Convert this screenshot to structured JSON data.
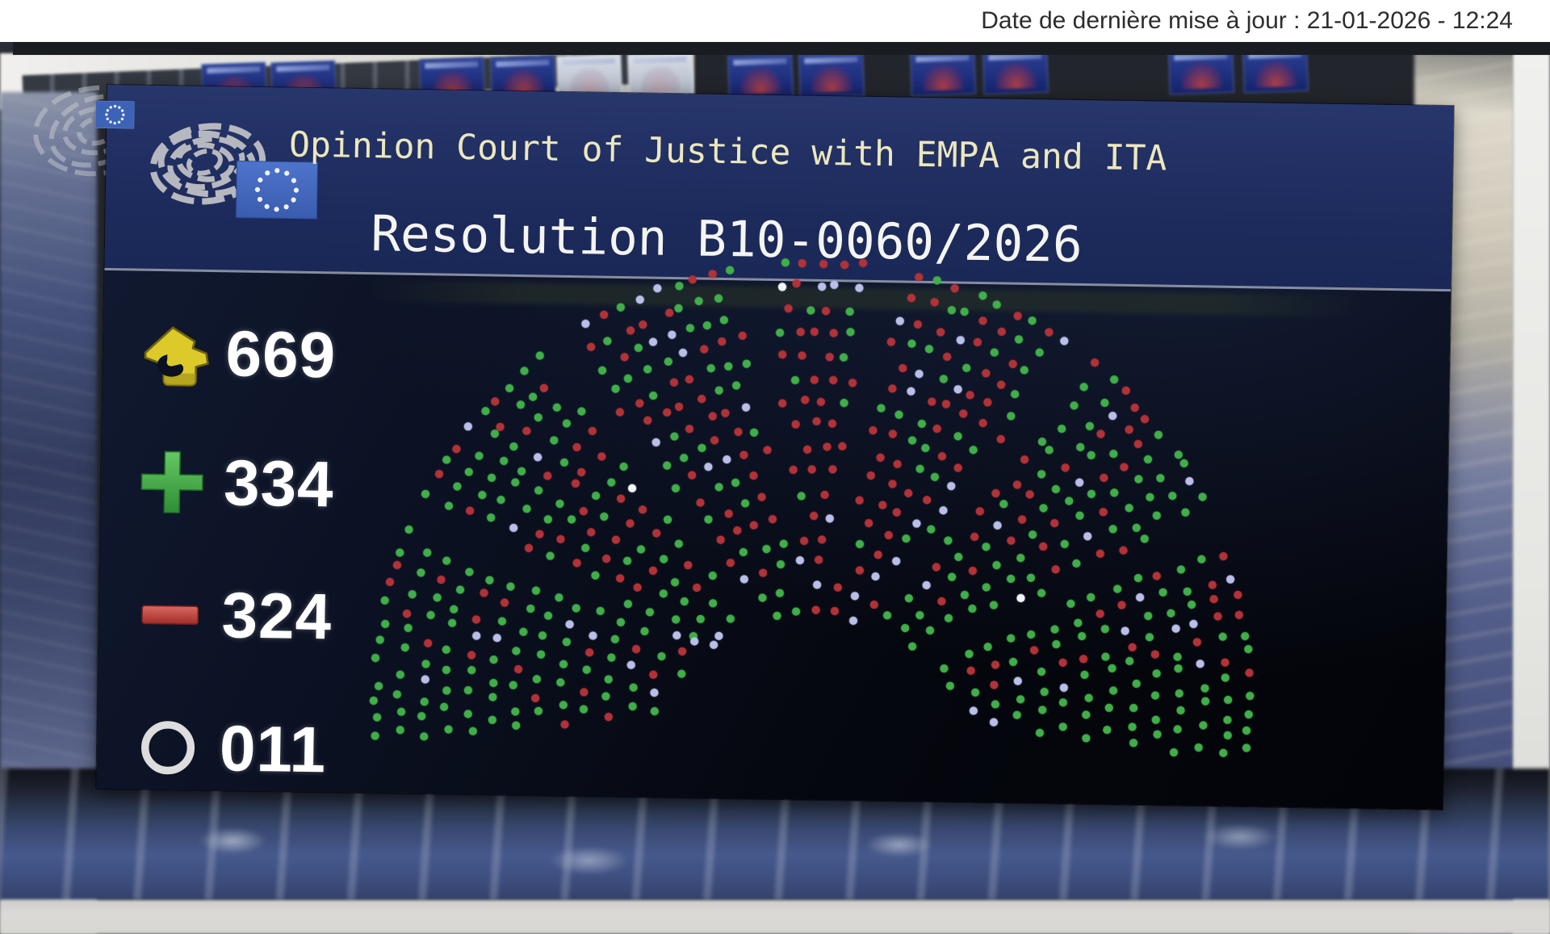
{
  "status_bar": {
    "last_update": "Date de dernière mise à jour : 21-01-2026 - 12:24"
  },
  "vote_panel": {
    "title_line1": "Opinion Court of Justice with EMPA and ITA",
    "title_line2": "Resolution B10-0060/2026",
    "counters": {
      "voted": {
        "icon": "vote-card-icon",
        "value": "669"
      },
      "for": {
        "icon": "plus-icon",
        "value": "334"
      },
      "against": {
        "icon": "minus-icon",
        "value": "324"
      },
      "abstention": {
        "icon": "circle-icon",
        "value": "011"
      }
    },
    "colors": {
      "header_bg": "#1e2c5e",
      "title_cream": "#ece7bd",
      "voted_yellow": "#dcca2b",
      "for_green": "#3fae49",
      "against_red": "#b23237",
      "not_voted_lavender": "#b9bfe8",
      "abstain_white": "#f4f6ff",
      "eu_flag_blue": "#3d63b6"
    },
    "hemicycle": {
      "type": "hemicycle-dot-seats",
      "seed": 7,
      "rows": 16,
      "inner_radius": 112,
      "row_gap": 28.6,
      "dot_radius": 5,
      "dot_spacing": 24.2,
      "start_angle": -7,
      "end_angle": 187,
      "aisle_angles": [
        24,
        53,
        81,
        99,
        127,
        156
      ],
      "aisle_half_width": 2.3,
      "inner_row_spans": [
        [
          52,
          128
        ],
        [
          24,
          156
        ],
        [
          6,
          174
        ]
      ],
      "proportions": {
        "for": 0.465,
        "against": 0.45,
        "not_voted": 0.08,
        "abstain_white": 0.005
      },
      "extra_dots": [
        [
          738,
          678,
          "not_voted"
        ],
        [
          762,
          682,
          "not_voted"
        ],
        [
          716,
          671,
          "not_voted"
        ]
      ]
    }
  }
}
